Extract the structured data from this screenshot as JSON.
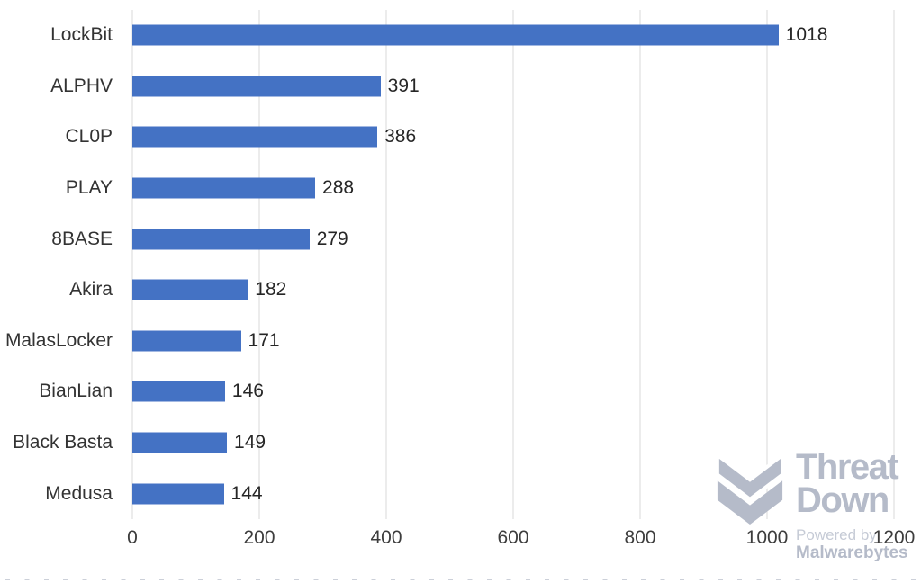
{
  "chart_data": {
    "type": "bar",
    "orientation": "horizontal",
    "title": "",
    "xlabel": "",
    "ylabel": "",
    "categories": [
      "LockBit",
      "ALPHV",
      "CL0P",
      "PLAY",
      "8BASE",
      "Akira",
      "MalasLocker",
      "BianLian",
      "Black Basta",
      "Medusa"
    ],
    "values": [
      1018,
      391,
      386,
      288,
      279,
      182,
      171,
      146,
      149,
      144
    ],
    "value_labels": [
      "1018",
      "391",
      "386",
      "288",
      "279",
      "182",
      "171",
      "146",
      "149",
      "144"
    ],
    "xlim": [
      0,
      1200
    ],
    "xticks": [
      0,
      200,
      400,
      600,
      800,
      1000,
      1200
    ],
    "grid": "vertical-only",
    "legend": "none",
    "bar_color": "#4472C4",
    "gridline_color": "#D9D9D9"
  },
  "watermark": {
    "brand_line1": "Threat",
    "brand_line2": "Down",
    "powered_by": "Powered by",
    "brand_sub": "Malwarebytes",
    "color": "#B5BBC9",
    "powered_by_color": "#C6CBD6"
  }
}
